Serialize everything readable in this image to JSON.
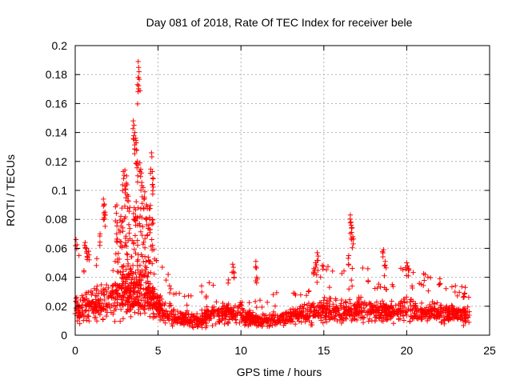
{
  "chart_data": {
    "type": "scatter",
    "title": "Day 081 of 2018, Rate Of TEC Index for receiver bele",
    "xlabel": "GPS time / hours",
    "ylabel": "ROTI / TECUs",
    "xlim": [
      0,
      25
    ],
    "ylim": [
      0,
      0.2
    ],
    "x_ticks": [
      0,
      5,
      10,
      15,
      20,
      25
    ],
    "x_tick_labels": [
      "0",
      "5",
      "10",
      "15",
      "20",
      "25"
    ],
    "y_ticks": [
      0,
      0.02,
      0.04,
      0.06,
      0.08,
      0.1,
      0.12,
      0.14,
      0.16,
      0.18,
      0.2
    ],
    "y_tick_labels": [
      "0",
      "0.02",
      "0.04",
      "0.06",
      "0.08",
      "0.1",
      "0.12",
      "0.14",
      "0.16",
      "0.18",
      "0.2"
    ],
    "grid": true,
    "marker": "+",
    "marker_color": "#ff0000",
    "series": [
      {
        "name": "ROTI",
        "x_range": [
          0,
          23.8
        ],
        "sample_count": 1800,
        "baseline_profile": [
          {
            "x": 0.0,
            "y": 0.018,
            "spread": 0.012
          },
          {
            "x": 1.0,
            "y": 0.02,
            "spread": 0.014
          },
          {
            "x": 2.0,
            "y": 0.024,
            "spread": 0.018
          },
          {
            "x": 3.0,
            "y": 0.03,
            "spread": 0.022
          },
          {
            "x": 4.0,
            "y": 0.032,
            "spread": 0.026
          },
          {
            "x": 5.0,
            "y": 0.02,
            "spread": 0.012
          },
          {
            "x": 6.0,
            "y": 0.012,
            "spread": 0.007
          },
          {
            "x": 7.0,
            "y": 0.01,
            "spread": 0.006
          },
          {
            "x": 8.0,
            "y": 0.013,
            "spread": 0.008
          },
          {
            "x": 9.0,
            "y": 0.016,
            "spread": 0.009
          },
          {
            "x": 10.0,
            "y": 0.015,
            "spread": 0.008
          },
          {
            "x": 11.0,
            "y": 0.01,
            "spread": 0.005
          },
          {
            "x": 12.0,
            "y": 0.011,
            "spread": 0.006
          },
          {
            "x": 13.0,
            "y": 0.013,
            "spread": 0.006
          },
          {
            "x": 14.0,
            "y": 0.015,
            "spread": 0.008
          },
          {
            "x": 15.0,
            "y": 0.018,
            "spread": 0.01
          },
          {
            "x": 16.0,
            "y": 0.016,
            "spread": 0.009
          },
          {
            "x": 17.0,
            "y": 0.018,
            "spread": 0.01
          },
          {
            "x": 18.0,
            "y": 0.017,
            "spread": 0.009
          },
          {
            "x": 19.0,
            "y": 0.016,
            "spread": 0.009
          },
          {
            "x": 20.0,
            "y": 0.018,
            "spread": 0.01
          },
          {
            "x": 21.0,
            "y": 0.016,
            "spread": 0.009
          },
          {
            "x": 22.0,
            "y": 0.015,
            "spread": 0.008
          },
          {
            "x": 23.0,
            "y": 0.014,
            "spread": 0.008
          },
          {
            "x": 23.8,
            "y": 0.013,
            "spread": 0.007
          }
        ],
        "peak_points": [
          {
            "x": 0.05,
            "y": 0.066
          },
          {
            "x": 0.6,
            "y": 0.064
          },
          {
            "x": 0.7,
            "y": 0.06
          },
          {
            "x": 0.8,
            "y": 0.058
          },
          {
            "x": 1.5,
            "y": 0.07
          },
          {
            "x": 1.7,
            "y": 0.094
          },
          {
            "x": 1.75,
            "y": 0.09
          },
          {
            "x": 1.8,
            "y": 0.085
          },
          {
            "x": 2.5,
            "y": 0.07
          },
          {
            "x": 2.9,
            "y": 0.113
          },
          {
            "x": 3.0,
            "y": 0.114
          },
          {
            "x": 3.1,
            "y": 0.11
          },
          {
            "x": 3.05,
            "y": 0.101
          },
          {
            "x": 3.2,
            "y": 0.096
          },
          {
            "x": 3.5,
            "y": 0.148
          },
          {
            "x": 3.55,
            "y": 0.145
          },
          {
            "x": 3.6,
            "y": 0.14
          },
          {
            "x": 3.65,
            "y": 0.136
          },
          {
            "x": 3.7,
            "y": 0.128
          },
          {
            "x": 3.75,
            "y": 0.12
          },
          {
            "x": 3.8,
            "y": 0.189
          },
          {
            "x": 3.85,
            "y": 0.182
          },
          {
            "x": 3.82,
            "y": 0.178
          },
          {
            "x": 3.9,
            "y": 0.119
          },
          {
            "x": 4.0,
            "y": 0.112
          },
          {
            "x": 4.1,
            "y": 0.102
          },
          {
            "x": 4.2,
            "y": 0.099
          },
          {
            "x": 4.6,
            "y": 0.126
          },
          {
            "x": 4.65,
            "y": 0.113
          },
          {
            "x": 4.7,
            "y": 0.108
          },
          {
            "x": 4.5,
            "y": 0.08
          },
          {
            "x": 4.3,
            "y": 0.09
          },
          {
            "x": 9.5,
            "y": 0.049
          },
          {
            "x": 9.6,
            "y": 0.043
          },
          {
            "x": 10.9,
            "y": 0.051
          },
          {
            "x": 10.95,
            "y": 0.04
          },
          {
            "x": 14.6,
            "y": 0.057
          },
          {
            "x": 14.5,
            "y": 0.05
          },
          {
            "x": 14.4,
            "y": 0.046
          },
          {
            "x": 16.6,
            "y": 0.083
          },
          {
            "x": 16.65,
            "y": 0.076
          },
          {
            "x": 16.7,
            "y": 0.074
          },
          {
            "x": 16.75,
            "y": 0.068
          },
          {
            "x": 16.5,
            "y": 0.055
          },
          {
            "x": 18.6,
            "y": 0.059
          },
          {
            "x": 18.7,
            "y": 0.051
          },
          {
            "x": 20.0,
            "y": 0.05
          },
          {
            "x": 20.1,
            "y": 0.046
          },
          {
            "x": 22.0,
            "y": 0.039
          },
          {
            "x": 23.5,
            "y": 0.029
          }
        ]
      }
    ]
  }
}
